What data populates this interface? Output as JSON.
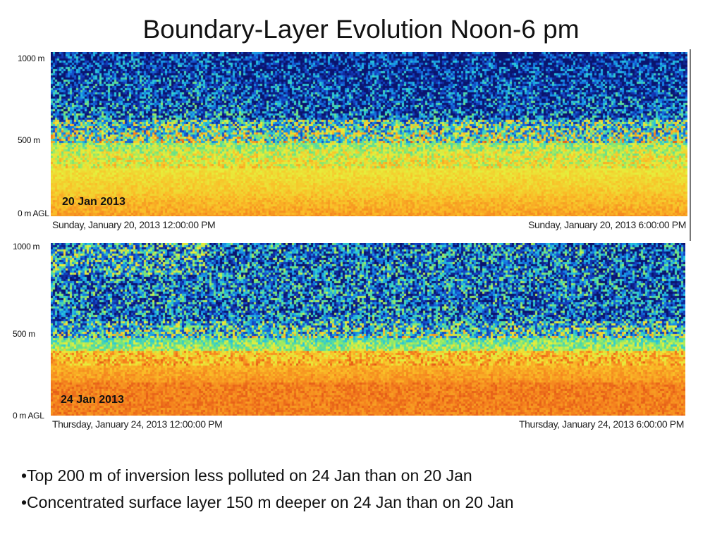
{
  "slide": {
    "title": "Boundary-Layer Evolution Noon-6 pm"
  },
  "panels": [
    {
      "date_label": "20 Jan 2013",
      "start_time": "Sunday, January 20, 2013 12:00:00 PM",
      "end_time": "Sunday, January 20, 2013 6:00:00 PM",
      "y_ticks": [
        "1000 m",
        "500 m",
        "0 m AGL"
      ]
    },
    {
      "date_label": "24 Jan 2013",
      "start_time": "Thursday, January 24, 2013 12:00:00 PM",
      "end_time": "Thursday, January 24, 2013 6:00:00 PM",
      "y_ticks": [
        "1000 m",
        "500 m",
        "0 m AGL"
      ]
    }
  ],
  "bullets": [
    "•Top 200 m of inversion less polluted on 24 Jan than on 20 Jan",
    "•Concentrated surface layer 150 m deeper on 24 Jan than on 20 Jan"
  ]
}
